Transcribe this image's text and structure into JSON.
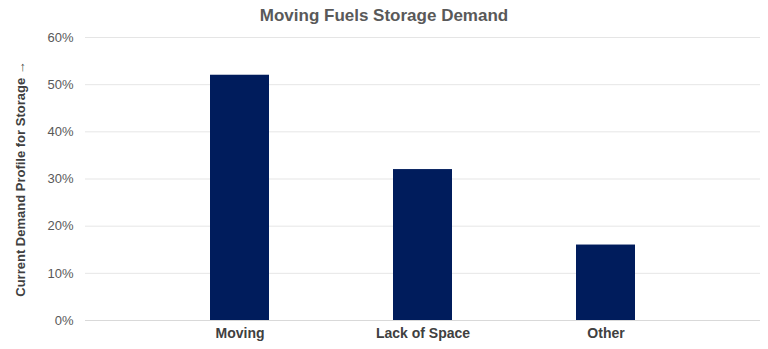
{
  "chart_data": {
    "type": "bar",
    "title": "Moving Fuels Storage Demand",
    "y_label": "Current Demand Profile for Storage",
    "categories": [
      "Moving",
      "Lack of Space",
      "Other"
    ],
    "values": [
      52,
      32,
      16
    ],
    "color": "#001c5c",
    "ylim": [
      0,
      60
    ],
    "yticks": [
      {
        "value": 0,
        "label": "0%"
      },
      {
        "value": 10,
        "label": "10%"
      },
      {
        "value": 20,
        "label": "20%"
      },
      {
        "value": 30,
        "label": "30%"
      },
      {
        "value": 40,
        "label": "40%"
      },
      {
        "value": 50,
        "label": "50%"
      },
      {
        "value": 60,
        "label": "60%"
      }
    ],
    "grid": true
  }
}
